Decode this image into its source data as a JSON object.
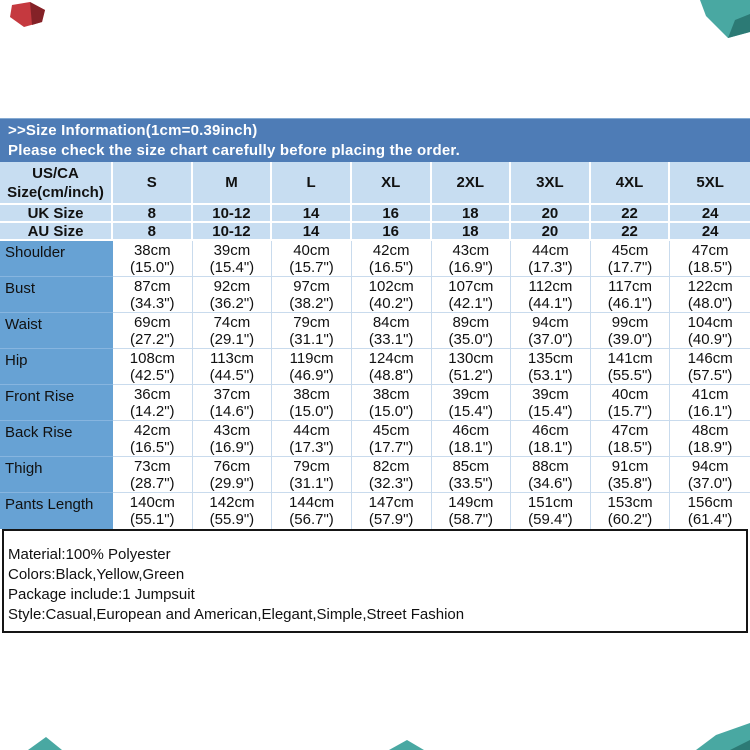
{
  "banner": {
    "line1": ">>Size Information(1cm=0.39inch)",
    "line2": "Please check the size chart carefully before placing the order."
  },
  "size_table": {
    "corner_header": [
      "US/CA",
      "Size(cm/inch)"
    ],
    "size_labels": [
      "S",
      "M",
      "L",
      "XL",
      "2XL",
      "3XL",
      "4XL",
      "5XL"
    ],
    "uk_row": {
      "label": "UK Size",
      "values": [
        "8",
        "10-12",
        "14",
        "16",
        "18",
        "20",
        "22",
        "24"
      ]
    },
    "au_row": {
      "label": "AU Size",
      "values": [
        "8",
        "10-12",
        "14",
        "16",
        "18",
        "20",
        "22",
        "24"
      ]
    },
    "measurement_rows": [
      {
        "label": "Shoulder",
        "cells": [
          [
            "38cm",
            "(15.0\")"
          ],
          [
            "39cm",
            "(15.4\")"
          ],
          [
            "40cm",
            "(15.7\")"
          ],
          [
            "42cm",
            "(16.5\")"
          ],
          [
            "43cm",
            "(16.9\")"
          ],
          [
            "44cm",
            "(17.3\")"
          ],
          [
            "45cm",
            "(17.7\")"
          ],
          [
            "47cm",
            "(18.5\")"
          ]
        ]
      },
      {
        "label": "Bust",
        "cells": [
          [
            "87cm",
            "(34.3\")"
          ],
          [
            "92cm",
            "(36.2\")"
          ],
          [
            "97cm",
            "(38.2\")"
          ],
          [
            "102cm",
            "(40.2\")"
          ],
          [
            "107cm",
            "(42.1\")"
          ],
          [
            "112cm",
            "(44.1\")"
          ],
          [
            "117cm",
            "(46.1\")"
          ],
          [
            "122cm",
            "(48.0\")"
          ]
        ]
      },
      {
        "label": "Waist",
        "cells": [
          [
            "69cm",
            "(27.2\")"
          ],
          [
            "74cm",
            "(29.1\")"
          ],
          [
            "79cm",
            "(31.1\")"
          ],
          [
            "84cm",
            "(33.1\")"
          ],
          [
            "89cm",
            "(35.0\")"
          ],
          [
            "94cm",
            "(37.0\")"
          ],
          [
            "99cm",
            "(39.0\")"
          ],
          [
            "104cm",
            "(40.9\")"
          ]
        ]
      },
      {
        "label": "Hip",
        "cells": [
          [
            "108cm",
            "(42.5\")"
          ],
          [
            "113cm",
            "(44.5\")"
          ],
          [
            "119cm",
            "(46.9\")"
          ],
          [
            "124cm",
            "(48.8\")"
          ],
          [
            "130cm",
            "(51.2\")"
          ],
          [
            "135cm",
            "(53.1\")"
          ],
          [
            "141cm",
            "(55.5\")"
          ],
          [
            "146cm",
            "(57.5\")"
          ]
        ]
      },
      {
        "label": "Front Rise",
        "cells": [
          [
            "36cm",
            "(14.2\")"
          ],
          [
            "37cm",
            "(14.6\")"
          ],
          [
            "38cm",
            "(15.0\")"
          ],
          [
            "38cm",
            "(15.0\")"
          ],
          [
            "39cm",
            "(15.4\")"
          ],
          [
            "39cm",
            "(15.4\")"
          ],
          [
            "40cm",
            "(15.7\")"
          ],
          [
            "41cm",
            "(16.1\")"
          ]
        ]
      },
      {
        "label": "Back Rise",
        "cells": [
          [
            "42cm",
            "(16.5\")"
          ],
          [
            "43cm",
            "(16.9\")"
          ],
          [
            "44cm",
            "(17.3\")"
          ],
          [
            "45cm",
            "(17.7\")"
          ],
          [
            "46cm",
            "(18.1\")"
          ],
          [
            "46cm",
            "(18.1\")"
          ],
          [
            "47cm",
            "(18.5\")"
          ],
          [
            "48cm",
            "(18.9\")"
          ]
        ]
      },
      {
        "label": "Thigh",
        "cells": [
          [
            "73cm",
            "(28.7\")"
          ],
          [
            "76cm",
            "(29.9\")"
          ],
          [
            "79cm",
            "(31.1\")"
          ],
          [
            "82cm",
            "(32.3\")"
          ],
          [
            "85cm",
            "(33.5\")"
          ],
          [
            "88cm",
            "(34.6\")"
          ],
          [
            "91cm",
            "(35.8\")"
          ],
          [
            "94cm",
            "(37.0\")"
          ]
        ]
      },
      {
        "label": "Pants Length",
        "cells": [
          [
            "140cm",
            "(55.1\")"
          ],
          [
            "142cm",
            "(55.9\")"
          ],
          [
            "144cm",
            "(56.7\")"
          ],
          [
            "147cm",
            "(57.9\")"
          ],
          [
            "149cm",
            "(58.7\")"
          ],
          [
            "151cm",
            "(59.4\")"
          ],
          [
            "153cm",
            "(60.2\")"
          ],
          [
            "156cm",
            "(61.4\")"
          ]
        ]
      }
    ]
  },
  "product_info": {
    "lines": [
      "Material:100% Polyester",
      "Colors:Black,Yellow,Green",
      "Package include:1 Jumpsuit",
      "Style:Casual,European and American,Elegant,Simple,Street Fashion"
    ]
  },
  "colors": {
    "banner_bg": "#4e7cb6",
    "header_bg": "#c7ddf1",
    "label_bg": "#67a2d4",
    "grid_blue": "#c9dbed",
    "deco_red": "#c5393f",
    "deco_teal": "#49a8a2"
  }
}
